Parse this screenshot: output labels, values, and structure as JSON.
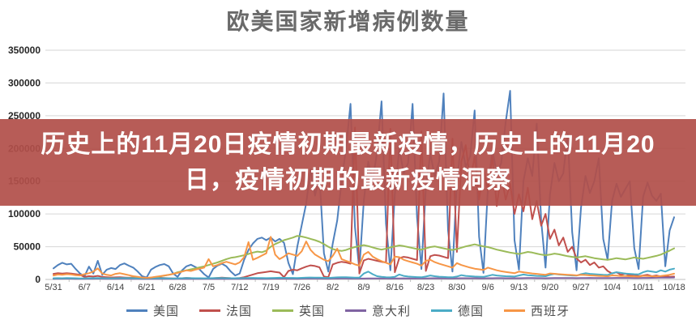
{
  "title": "欧美国家新增病例数量",
  "banner": {
    "text": "历史上的11月20日疫情初期最新疫情，历史上的11月20日，疫情初期的最新疫情洞察",
    "background": "#B1504A",
    "background_opacity": 0.93,
    "text_color": "#ffffff"
  },
  "colors": {
    "gridline": "#d6d6d6",
    "axis_line": "#bfbfbf",
    "title_text": "#6a6a6a",
    "y_tick_text": "#262626",
    "x_tick_text": "#404040",
    "legend_text": "#4d4d4d"
  },
  "chart_data": {
    "type": "line",
    "title": "欧美国家新增病例数量",
    "xlabel": "",
    "ylabel": "",
    "ylim": [
      0,
      350000
    ],
    "y_ticks": [
      0,
      50000,
      100000,
      150000,
      200000,
      250000,
      300000,
      350000
    ],
    "y_tick_labels": [
      "0",
      "50000",
      "100000",
      "150000",
      "200000",
      "250000",
      "300000",
      "350000"
    ],
    "x_tick_labels": [
      "5/31",
      "6/7",
      "6/14",
      "6/21",
      "6/28",
      "7/5",
      "7/12",
      "7/19",
      "7/26",
      "8/2",
      "8/9",
      "8/16",
      "8/23",
      "8/30",
      "9/6",
      "9/13",
      "9/20",
      "9/27",
      "10/4",
      "10/11",
      "10/18"
    ],
    "x_resolution": "daily, day 0 = 5/31 through day 140 = 10/18, weekly axis labels",
    "grid": "horizontal",
    "legend_position": "bottom",
    "series": [
      {
        "name": "美国",
        "key": "us",
        "color": "#4F81BD",
        "values": [
          17000,
          22000,
          25500,
          23000,
          24000,
          16000,
          9000,
          5000,
          19500,
          9000,
          28500,
          7000,
          15000,
          17500,
          16000,
          22000,
          24500,
          21000,
          18000,
          12000,
          5000,
          3000,
          15000,
          19000,
          22000,
          23500,
          20000,
          9000,
          4000,
          14000,
          20000,
          22500,
          19000,
          15000,
          8000,
          3000,
          16000,
          21000,
          24000,
          20000,
          12000,
          6000,
          9000,
          30000,
          45000,
          55000,
          62000,
          64000,
          60000,
          64000,
          58000,
          62000,
          56000,
          25000,
          8000,
          50000,
          83000,
          116000,
          168000,
          128000,
          158000,
          40000,
          12000,
          55000,
          90000,
          150000,
          200000,
          268000,
          80000,
          15000,
          120000,
          180000,
          150000,
          195000,
          272000,
          85000,
          14000,
          130000,
          200000,
          162000,
          178000,
          268000,
          95000,
          16000,
          140000,
          192000,
          158000,
          180000,
          284000,
          75000,
          12000,
          150000,
          210000,
          172000,
          188000,
          258000,
          65000,
          10000,
          140000,
          198000,
          162000,
          178000,
          240000,
          288000,
          60000,
          15000,
          150000,
          185000,
          158000,
          238000,
          90000,
          18000,
          130000,
          178000,
          150000,
          162000,
          222000,
          72000,
          14000,
          110000,
          158000,
          132000,
          150000,
          185000,
          62000,
          30000,
          120000,
          146000,
          126000,
          138000,
          150000,
          48000,
          16000,
          126000,
          148000,
          128000,
          120000,
          131000,
          20000,
          75000,
          95000
        ]
      },
      {
        "name": "法国",
        "key": "fr",
        "color": "#C0504D",
        "values": [
          8500,
          9500,
          9000,
          9500,
          9000,
          8000,
          7000,
          4000,
          5000,
          4500,
          5500,
          4000,
          3500,
          3000,
          3200,
          3500,
          3000,
          2600,
          3000,
          2500,
          2000,
          2000,
          2400,
          2800,
          2500,
          2200,
          1900,
          1600,
          1500,
          1900,
          2300,
          2000,
          1800,
          1500,
          1300,
          1500,
          1900,
          2400,
          2800,
          2400,
          2000,
          1800,
          2200,
          3500,
          5500,
          7500,
          9500,
          10500,
          11500,
          12500,
          11500,
          10500,
          3500,
          13000,
          15000,
          14000,
          17000,
          19500,
          21500,
          20500,
          18500,
          4500,
          3500,
          23000,
          25500,
          27000,
          26000,
          24000,
          232000,
          9000,
          29000,
          31500,
          30000,
          28500,
          27000,
          26000,
          230000,
          11000,
          32500,
          34500,
          33500,
          31500,
          29500,
          226000,
          13000,
          35500,
          37500,
          36500,
          34500,
          32500,
          215000,
          42000,
          180000,
          205000,
          150000,
          188000,
          122000,
          170000,
          136000,
          188000,
          112000,
          160000,
          122000,
          146000,
          100000,
          130000,
          104000,
          140000,
          92000,
          120000,
          82000,
          100000,
          62000,
          76000,
          52000,
          64000,
          42000,
          50000,
          32000,
          26000,
          30000,
          22000,
          26000,
          18000,
          20000,
          13000,
          9000,
          11000,
          7000,
          9000,
          6000,
          7000,
          5000,
          6000,
          7000,
          5000,
          6000,
          4500,
          5000,
          4000,
          4500
        ]
      },
      {
        "name": "英国",
        "key": "uk",
        "color": "#9BBB59",
        "values": [
          1200,
          1500,
          1400,
          1600,
          1500,
          1300,
          1200,
          1300,
          1500,
          1600,
          1800,
          1600,
          1500,
          1400,
          1500,
          1700,
          1900,
          2000,
          2200,
          2000,
          1900,
          2200,
          2800,
          3600,
          4600,
          5800,
          7000,
          8500,
          11000,
          12500,
          14000,
          15500,
          17000,
          18500,
          20000,
          22000,
          24000,
          26000,
          28500,
          31000,
          33000,
          34000,
          35500,
          37000,
          39000,
          41000,
          42500,
          41500,
          44000,
          50000,
          54000,
          57000,
          60000,
          62000,
          64000,
          66500,
          65500,
          64000,
          62000,
          60000,
          57500,
          54000,
          50000,
          46500,
          44500,
          43500,
          45000,
          47500,
          49500,
          51000,
          52500,
          51000,
          49000,
          47000,
          45500,
          47000,
          49000,
          50500,
          52000,
          51000,
          49500,
          48000,
          46500,
          45500,
          47500,
          49500,
          50500,
          49000,
          47500,
          46000,
          45000,
          46500,
          48500,
          50500,
          52000,
          53500,
          52000,
          50500,
          49500,
          47500,
          45500,
          44000,
          42500,
          41000,
          40000,
          39000,
          40500,
          42000,
          41000,
          39500,
          38000,
          37000,
          38000,
          39500,
          38500,
          37000,
          35500,
          34500,
          33500,
          34500,
          35500,
          34000,
          32500,
          31500,
          30500,
          30000,
          31000,
          32500,
          31500,
          30500,
          32000,
          33500,
          32500,
          31500,
          33000,
          34500,
          36000,
          38000,
          41000,
          44000,
          47500
        ]
      },
      {
        "name": "意大利",
        "key": "it",
        "color": "#8064A2",
        "values": [
          1000,
          1200,
          1100,
          1300,
          1200,
          1000,
          900,
          1000,
          1200,
          1100,
          1300,
          1100,
          1000,
          900,
          1000,
          1100,
          1200,
          1100,
          1000,
          900,
          800,
          900,
          1000,
          1100,
          1000,
          900,
          850,
          800,
          900,
          1000,
          1100,
          1000,
          950,
          900,
          850,
          900,
          1000,
          1100,
          1050,
          1000,
          950,
          900,
          1000,
          1100,
          1200,
          1150,
          1100,
          1050,
          1000,
          1100,
          1200,
          1300,
          1200,
          1150,
          1100,
          1050,
          1200,
          1300,
          1400,
          1350,
          1300,
          1200,
          1150,
          1300,
          1400,
          1500,
          1450,
          1400,
          1350,
          1300,
          1400,
          1500,
          1600,
          1550,
          1500,
          1450,
          1400,
          1500,
          1600,
          1700,
          1650,
          1600,
          1550,
          1500,
          1600,
          1700,
          1800,
          1750,
          1700,
          1650,
          1600,
          1700,
          1800,
          1900,
          1850,
          1800,
          1750,
          1700,
          1800,
          1900,
          2000,
          1950,
          1900,
          1850,
          1800,
          1900,
          2000,
          2100,
          2050,
          2000,
          1950,
          1900,
          2000,
          2100,
          2200,
          2150,
          2100,
          2050,
          2000,
          2100,
          2200,
          2300,
          2250,
          2200,
          2150,
          2100,
          2200,
          2300,
          2400,
          2350,
          2300,
          2250,
          2200,
          2300,
          2400,
          2500,
          2600,
          2700,
          2800,
          2900,
          3000
        ]
      },
      {
        "name": "德国",
        "key": "de",
        "color": "#4BACC6",
        "values": [
          1800,
          2000,
          1900,
          2100,
          2000,
          1800,
          1600,
          1700,
          1900,
          2000,
          2200,
          2000,
          1800,
          1700,
          1800,
          2000,
          2100,
          2000,
          1900,
          1700,
          1600,
          1700,
          1900,
          2000,
          1900,
          1800,
          1700,
          1600,
          1700,
          1900,
          2100,
          2000,
          1900,
          1800,
          1700,
          1800,
          2000,
          2200,
          2100,
          2000,
          1900,
          1800,
          2000,
          2200,
          2400,
          2300,
          2200,
          2100,
          2000,
          2200,
          2400,
          2600,
          2500,
          2400,
          2300,
          2200,
          2500,
          2800,
          3000,
          2900,
          2700,
          2500,
          2400,
          2800,
          3200,
          3500,
          3300,
          3100,
          2900,
          2800,
          9000,
          12000,
          8000,
          5000,
          4000,
          3500,
          3200,
          4000,
          7500,
          5500,
          4500,
          4000,
          3600,
          3400,
          4500,
          6000,
          5000,
          4200,
          3800,
          3500,
          3300,
          4500,
          6500,
          5500,
          5000,
          4500,
          4200,
          4000,
          5500,
          7000,
          6000,
          5500,
          5000,
          4800,
          4500,
          6000,
          7500,
          6500,
          6000,
          5500,
          5200,
          5000,
          7000,
          8500,
          7500,
          7000,
          6500,
          6000,
          5800,
          8000,
          9500,
          8500,
          8000,
          7500,
          7000,
          6800,
          9500,
          11000,
          10000,
          9000,
          8500,
          8000,
          7800,
          11000,
          13000,
          12000,
          11000,
          14000,
          12000,
          15000,
          16500
        ]
      },
      {
        "name": "西班牙",
        "key": "es",
        "color": "#F79646",
        "values": [
          6000,
          7500,
          7000,
          8000,
          7500,
          6500,
          6000,
          8000,
          9500,
          12000,
          17000,
          9000,
          7000,
          6000,
          8500,
          9500,
          8000,
          6500,
          5000,
          4000,
          3000,
          2500,
          3000,
          4000,
          5000,
          6000,
          7000,
          8500,
          10000,
          12000,
          14000,
          13000,
          15000,
          16500,
          18000,
          31000,
          20000,
          22000,
          25000,
          27000,
          25000,
          23000,
          26000,
          34000,
          57000,
          30000,
          33000,
          36500,
          40000,
          65000,
          38000,
          31000,
          35000,
          40000,
          38000,
          36000,
          43000,
          58000,
          45000,
          38000,
          34000,
          30000,
          28000,
          36000,
          47000,
          31000,
          28500,
          26000,
          23000,
          21000,
          38000,
          42000,
          35000,
          31000,
          28000,
          25500,
          23000,
          35000,
          34000,
          30000,
          28000,
          26000,
          24000,
          21000,
          28500,
          30000,
          26500,
          24000,
          22000,
          20000,
          18000,
          25000,
          22000,
          20000,
          18000,
          16500,
          15500,
          14500,
          18000,
          16000,
          14000,
          12500,
          11500,
          10500,
          9500,
          12000,
          11000,
          10000,
          9200,
          8500,
          7800,
          7200,
          9200,
          8600,
          8000,
          7600,
          7200,
          6800,
          6200,
          7200,
          6800,
          6200,
          5800,
          5400,
          5200,
          4800,
          6200,
          5800,
          5200,
          5200,
          4800,
          4600,
          4200,
          5600,
          5200,
          5000,
          4600,
          5200,
          6200,
          7200,
          8800
        ]
      }
    ]
  }
}
